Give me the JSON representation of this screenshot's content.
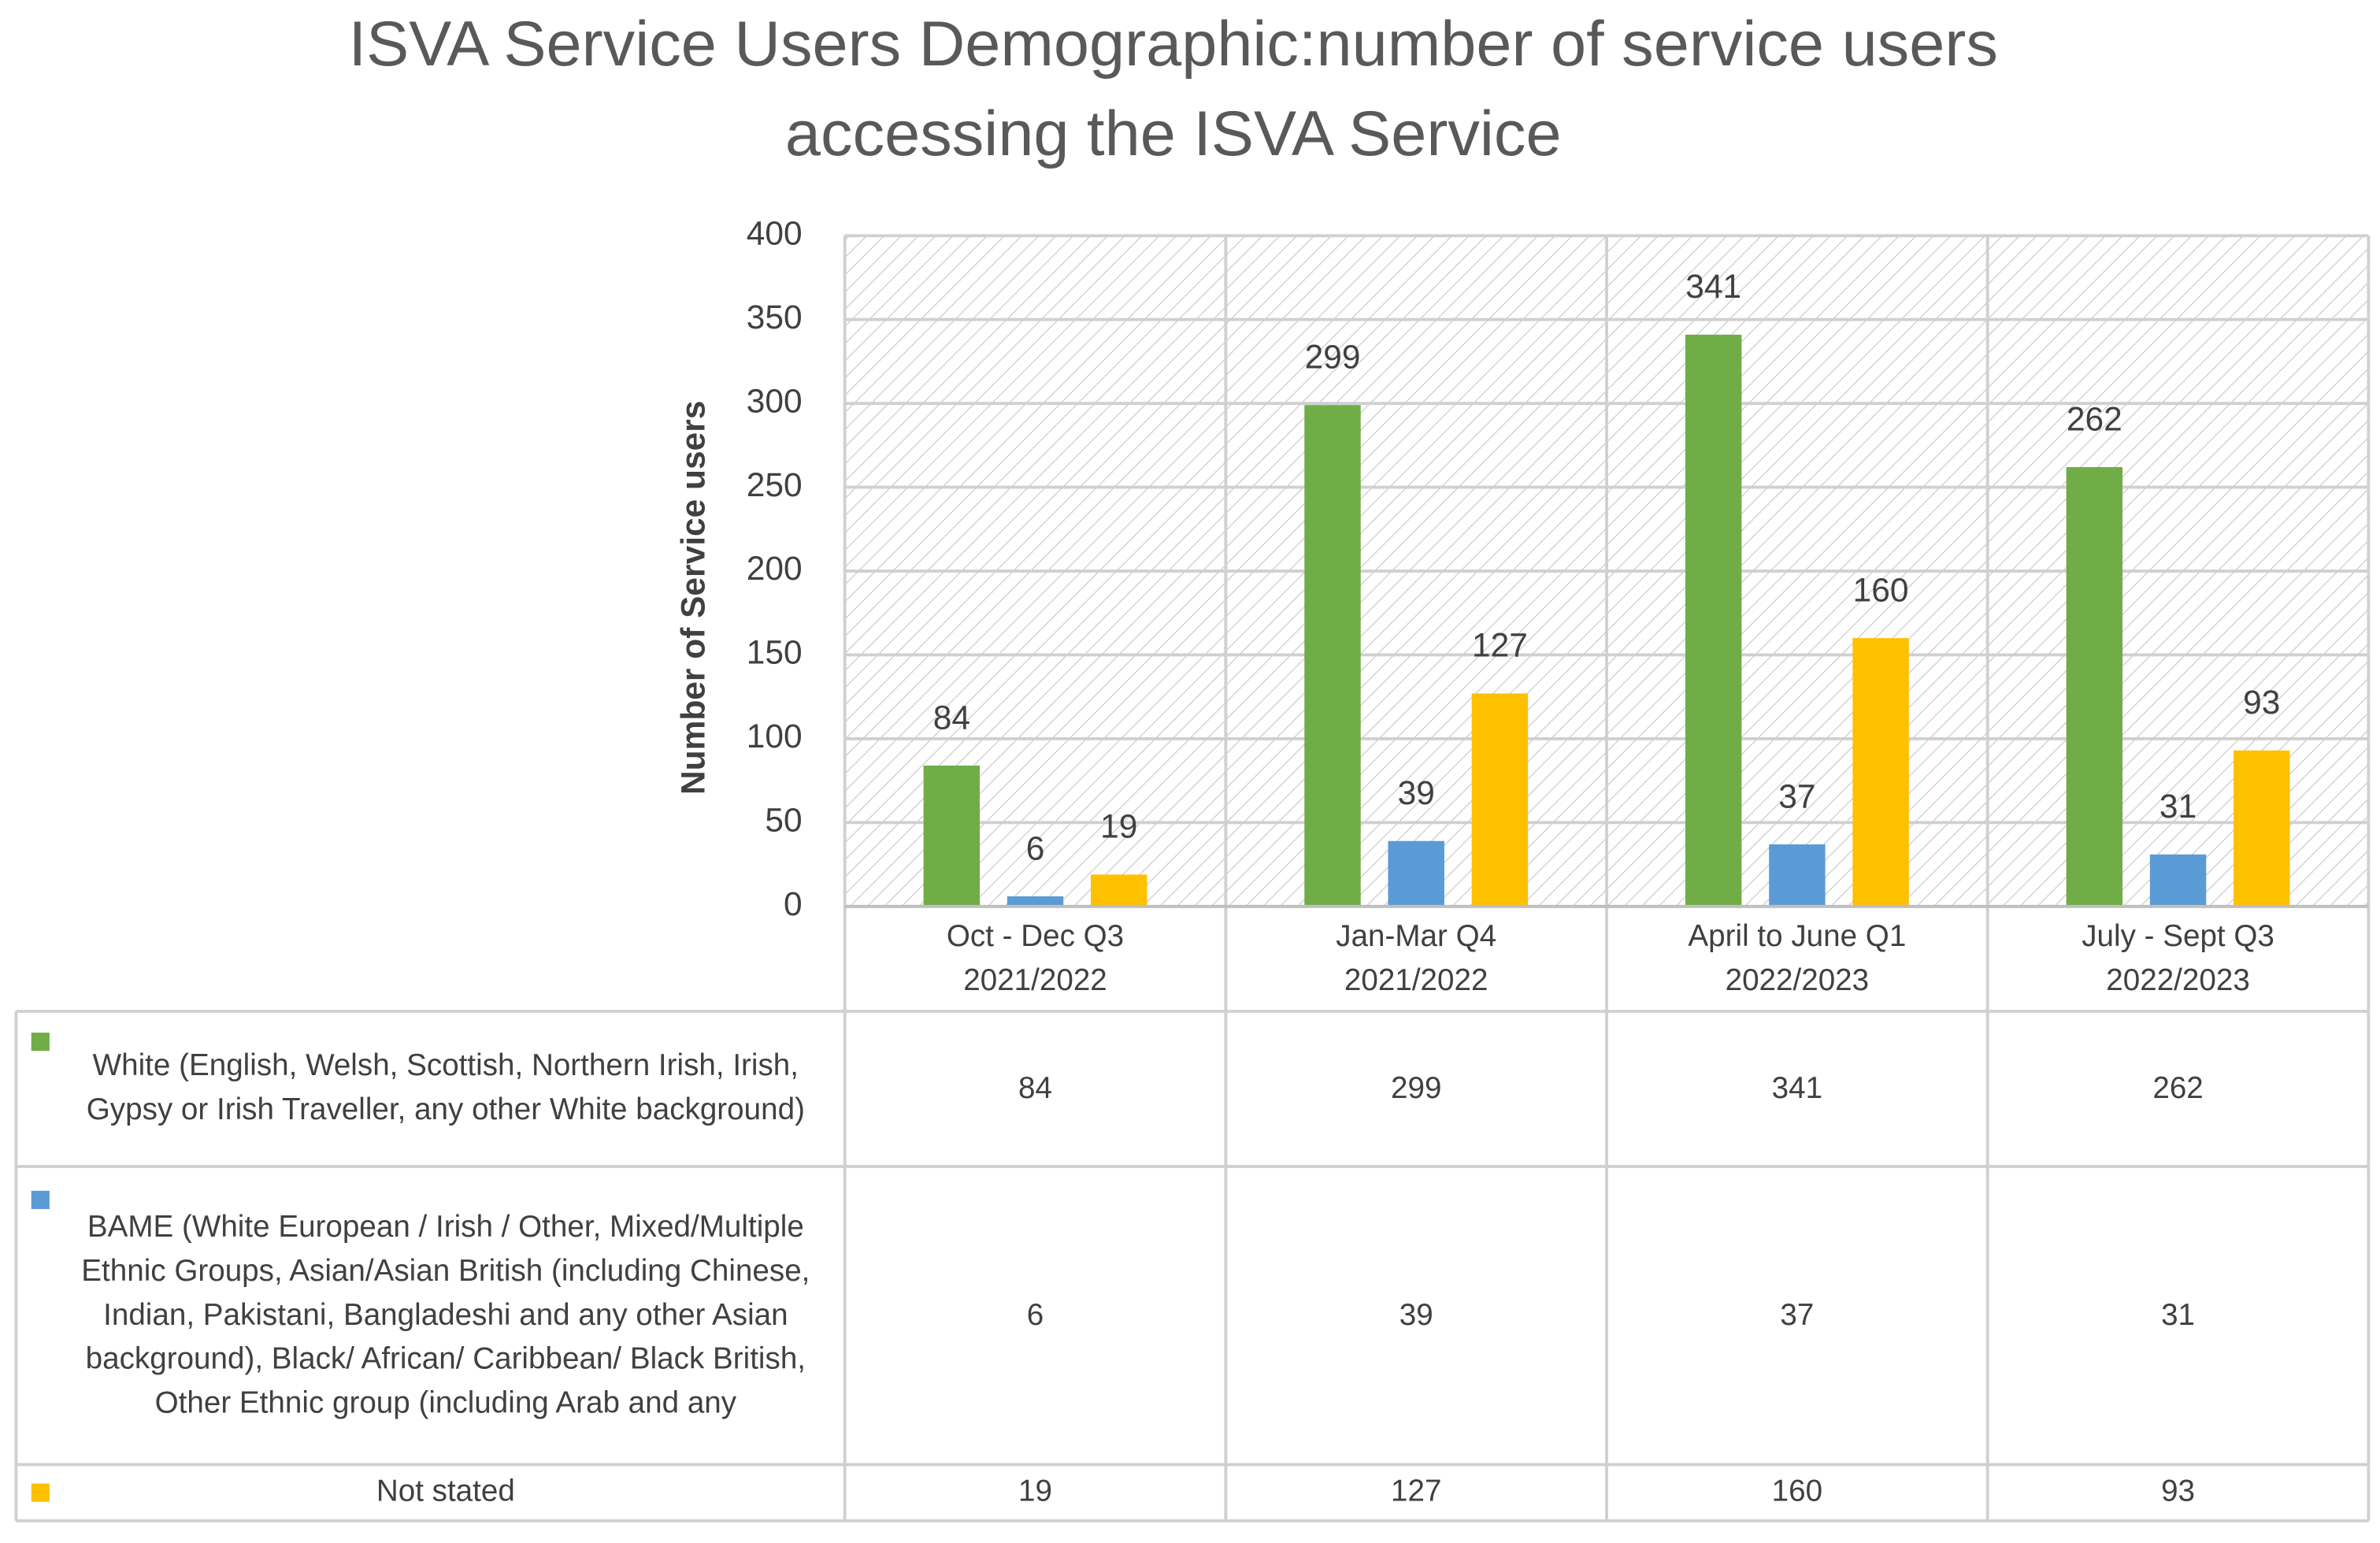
{
  "chart_data": {
    "type": "bar",
    "title": "ISVA Service Users Demographic:number of service users accessing the ISVA Service",
    "y_label": "Number of Service users",
    "categories": [
      "Oct - Dec Q3 2021/2022",
      "Jan-Mar Q4 2021/2022",
      "April to June Q1 2022/2023",
      "July - Sept Q3 2022/2023"
    ],
    "series": [
      {
        "name": "White (English, Welsh, Scottish, Northern Irish, Irish, Gypsy or Irish Traveller, any other White background)",
        "color": "#70ad47",
        "values": [
          84,
          299,
          341,
          262
        ]
      },
      {
        "name": "BAME (White European / Irish / Other, Mixed/Multiple Ethnic Groups, Asian/Asian British (including Chinese, Indian, Pakistani, Bangladeshi and any other Asian background), Black/ African/ Caribbean/ Black British, Other Ethnic group (including Arab and any",
        "color": "#5b9bd5",
        "values": [
          6,
          39,
          37,
          31
        ]
      },
      {
        "name": "Not stated",
        "color": "#ffc000",
        "values": [
          19,
          127,
          160,
          93
        ]
      }
    ],
    "ylim": [
      0,
      400
    ],
    "yticks": [
      0,
      50,
      100,
      150,
      200,
      250,
      300,
      350,
      400
    ],
    "grid": true
  }
}
